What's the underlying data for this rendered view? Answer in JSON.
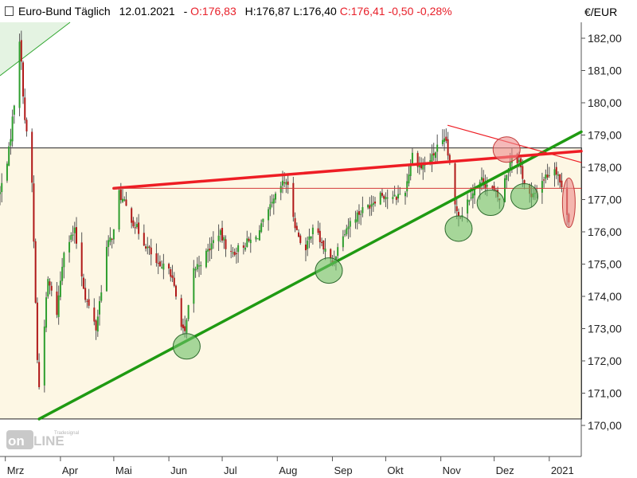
{
  "header": {
    "instrument": "Euro-Bund Täglich",
    "date": "12.01.2021",
    "open": "O:176,83",
    "high": "H:176,87",
    "low": "L:176,40",
    "close": "C:176,41",
    "change": "-0,50",
    "change_pct": "-0,28%"
  },
  "watermark": "Tradesignal online",
  "colors": {
    "up": "#2e9e2e",
    "down": "#b01818",
    "support": "#1f9a12",
    "resistance": "#ee1d24",
    "zone": "#fdf7e4",
    "highlight_green": "#6cc068",
    "highlight_red": "#ee8a8a"
  },
  "chart_data": {
    "type": "candlestick",
    "unit": "€/EUR",
    "y_range": [
      169.5,
      183.0
    ],
    "y_ticks": [
      "182,00",
      "181,00",
      "180,00",
      "179,00",
      "178,00",
      "177,00",
      "176,00",
      "175,00",
      "174,00",
      "173,00",
      "172,00",
      "171,00",
      "170,00"
    ],
    "y_tick_values": [
      182,
      181,
      180,
      179,
      178,
      177,
      176,
      175,
      174,
      173,
      172,
      171,
      170
    ],
    "x_range": [
      "2020-02-27",
      "2021-01-19"
    ],
    "x_ticks": [
      {
        "label": "Mrz",
        "date": "2020-03-01"
      },
      {
        "label": "Apr",
        "date": "2020-04-01"
      },
      {
        "label": "Mai",
        "date": "2020-05-01"
      },
      {
        "label": "Jun",
        "date": "2020-06-01"
      },
      {
        "label": "Jul",
        "date": "2020-07-01"
      },
      {
        "label": "Aug",
        "date": "2020-08-01"
      },
      {
        "label": "Sep",
        "date": "2020-09-01"
      },
      {
        "label": "Okt",
        "date": "2020-10-01"
      },
      {
        "label": "Nov",
        "date": "2020-11-01"
      },
      {
        "label": "Dez",
        "date": "2020-12-01"
      },
      {
        "label": "2021",
        "date": "2021-01-01"
      }
    ],
    "price_path": [
      [
        "2020-02-27",
        177.2
      ],
      [
        "2020-03-03",
        178.5
      ],
      [
        "2020-03-06",
        180.0
      ],
      [
        "2020-03-09",
        182.0
      ],
      [
        "2020-03-12",
        179.5
      ],
      [
        "2020-03-16",
        177.5
      ],
      [
        "2020-03-19",
        172.0
      ],
      [
        "2020-03-20",
        171.2
      ],
      [
        "2020-03-25",
        174.5
      ],
      [
        "2020-03-30",
        173.5
      ],
      [
        "2020-04-03",
        175.5
      ],
      [
        "2020-04-09",
        176.0
      ],
      [
        "2020-04-15",
        174.0
      ],
      [
        "2020-04-21",
        173.0
      ],
      [
        "2020-04-27",
        175.5
      ],
      [
        "2020-05-01",
        176.0
      ],
      [
        "2020-05-04",
        177.2
      ],
      [
        "2020-05-12",
        176.3
      ],
      [
        "2020-05-20",
        175.5
      ],
      [
        "2020-05-27",
        174.8
      ],
      [
        "2020-06-01",
        175.0
      ],
      [
        "2020-06-08",
        173.2
      ],
      [
        "2020-06-10",
        172.8
      ],
      [
        "2020-06-15",
        174.8
      ],
      [
        "2020-06-22",
        175.3
      ],
      [
        "2020-06-29",
        176.0
      ],
      [
        "2020-07-06",
        175.3
      ],
      [
        "2020-07-13",
        175.6
      ],
      [
        "2020-07-20",
        175.8
      ],
      [
        "2020-07-27",
        176.6
      ],
      [
        "2020-08-03",
        177.4
      ],
      [
        "2020-08-06",
        177.6
      ],
      [
        "2020-08-12",
        176.0
      ],
      [
        "2020-08-17",
        175.4
      ],
      [
        "2020-08-21",
        176.2
      ],
      [
        "2020-08-27",
        175.5
      ],
      [
        "2020-09-01",
        175.0
      ],
      [
        "2020-09-07",
        176.0
      ],
      [
        "2020-09-14",
        176.5
      ],
      [
        "2020-09-21",
        176.8
      ],
      [
        "2020-09-28",
        177.2
      ],
      [
        "2020-10-05",
        177.0
      ],
      [
        "2020-10-12",
        177.3
      ],
      [
        "2020-10-16",
        178.4
      ],
      [
        "2020-10-21",
        178.0
      ],
      [
        "2020-10-27",
        178.3
      ],
      [
        "2020-10-30",
        178.6
      ],
      [
        "2020-11-04",
        178.8
      ],
      [
        "2020-11-09",
        176.8
      ],
      [
        "2020-11-12",
        176.5
      ],
      [
        "2020-11-18",
        177.2
      ],
      [
        "2020-11-24",
        177.6
      ],
      [
        "2020-11-30",
        177.3
      ],
      [
        "2020-12-04",
        177.0
      ],
      [
        "2020-12-09",
        178.0
      ],
      [
        "2020-12-11",
        178.4
      ],
      [
        "2020-12-15",
        178.2
      ],
      [
        "2020-12-18",
        177.5
      ],
      [
        "2020-12-22",
        177.0
      ],
      [
        "2020-12-28",
        177.6
      ],
      [
        "2021-01-04",
        178.0
      ],
      [
        "2021-01-06",
        177.8
      ],
      [
        "2021-01-08",
        177.3
      ],
      [
        "2021-01-12",
        176.41
      ]
    ],
    "lines": [
      {
        "name": "support",
        "from": [
          "2020-03-20",
          170.2
        ],
        "to": [
          "2021-01-19",
          179.1
        ]
      },
      {
        "name": "resistance",
        "from": [
          "2020-05-01",
          177.35
        ],
        "to": [
          "2021-01-19",
          178.5
        ]
      },
      {
        "name": "short-down",
        "from": [
          "2020-11-05",
          179.3
        ],
        "to": [
          "2021-01-19",
          178.15
        ]
      },
      {
        "name": "horizontal-mid",
        "from": [
          "2020-05-01",
          177.35
        ],
        "to": [
          "2021-01-19",
          177.35
        ]
      }
    ],
    "zone": {
      "from": "2020-02-27",
      "to": "2021-01-19",
      "low": 170.2,
      "high": 178.6
    },
    "highlights": [
      {
        "color": "green",
        "date": "2020-06-11",
        "value": 172.45
      },
      {
        "color": "green",
        "date": "2020-08-30",
        "value": 174.8
      },
      {
        "color": "green",
        "date": "2020-11-11",
        "value": 176.1
      },
      {
        "color": "green",
        "date": "2020-11-29",
        "value": 176.9
      },
      {
        "color": "green",
        "date": "2020-12-18",
        "value": 177.1
      },
      {
        "color": "red",
        "date": "2020-12-08",
        "value": 178.55
      },
      {
        "color": "red",
        "date": "2021-01-12",
        "value": 176.9
      }
    ]
  }
}
